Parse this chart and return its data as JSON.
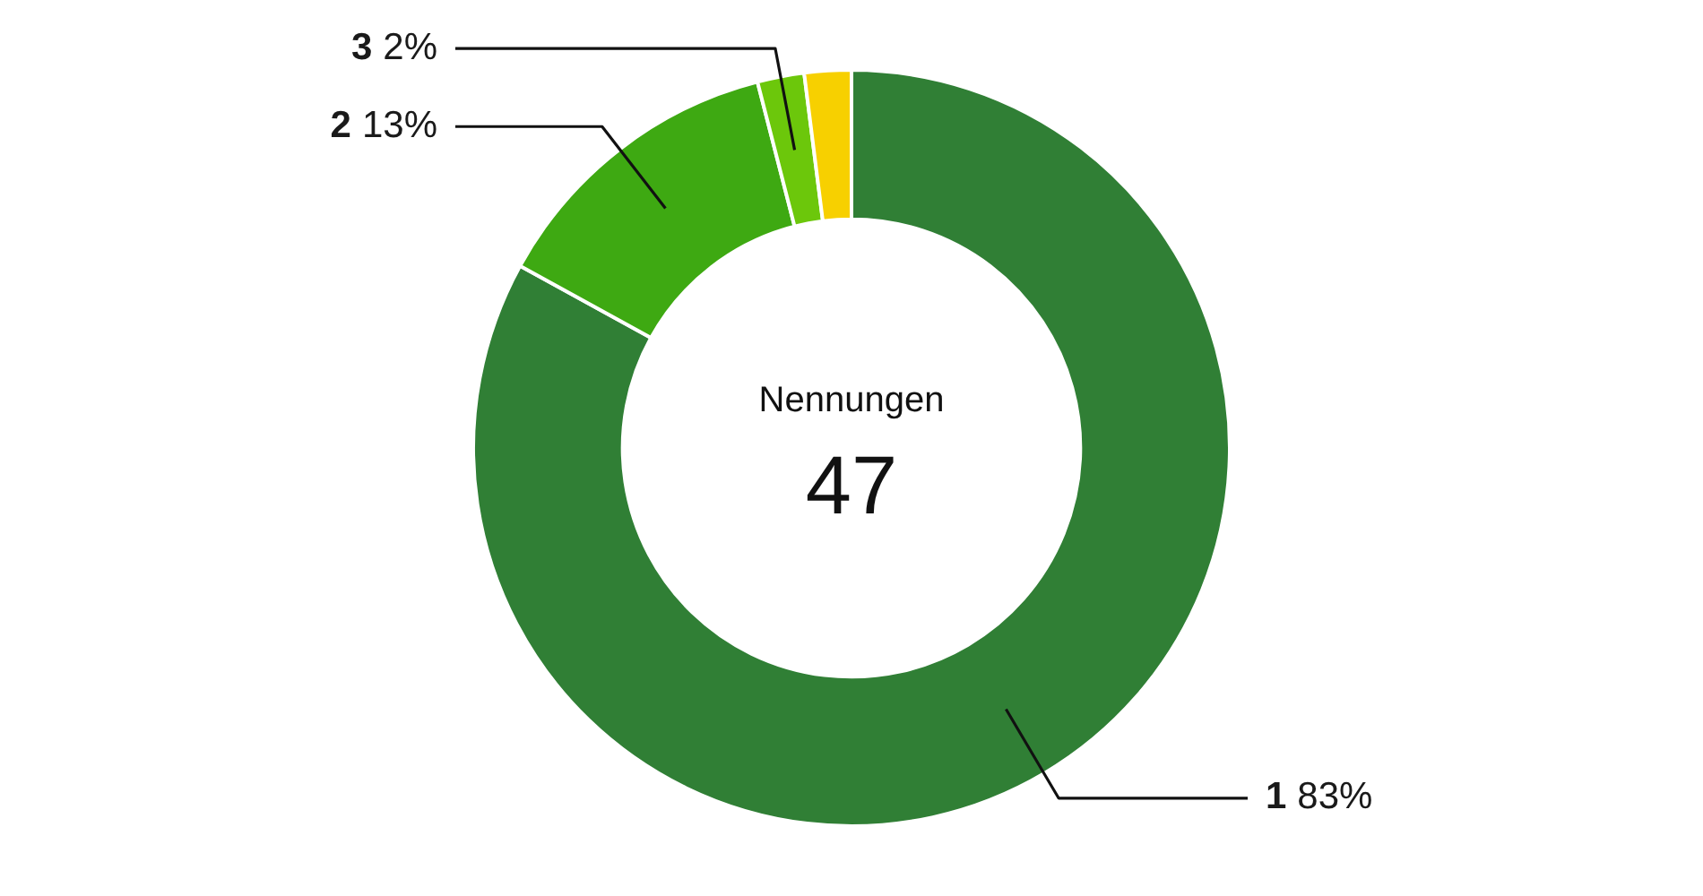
{
  "chart_data": {
    "type": "donut",
    "categories": [
      "1",
      "2",
      "3",
      null
    ],
    "values": [
      83,
      13,
      2,
      2
    ],
    "colors": [
      "#307f35",
      "#3ea912",
      "#6cc70b",
      "#f7d000"
    ],
    "value_labels": [
      "83%",
      "13%",
      "2%",
      null
    ],
    "annotations": [
      "Nennungen",
      "47"
    ]
  }
}
